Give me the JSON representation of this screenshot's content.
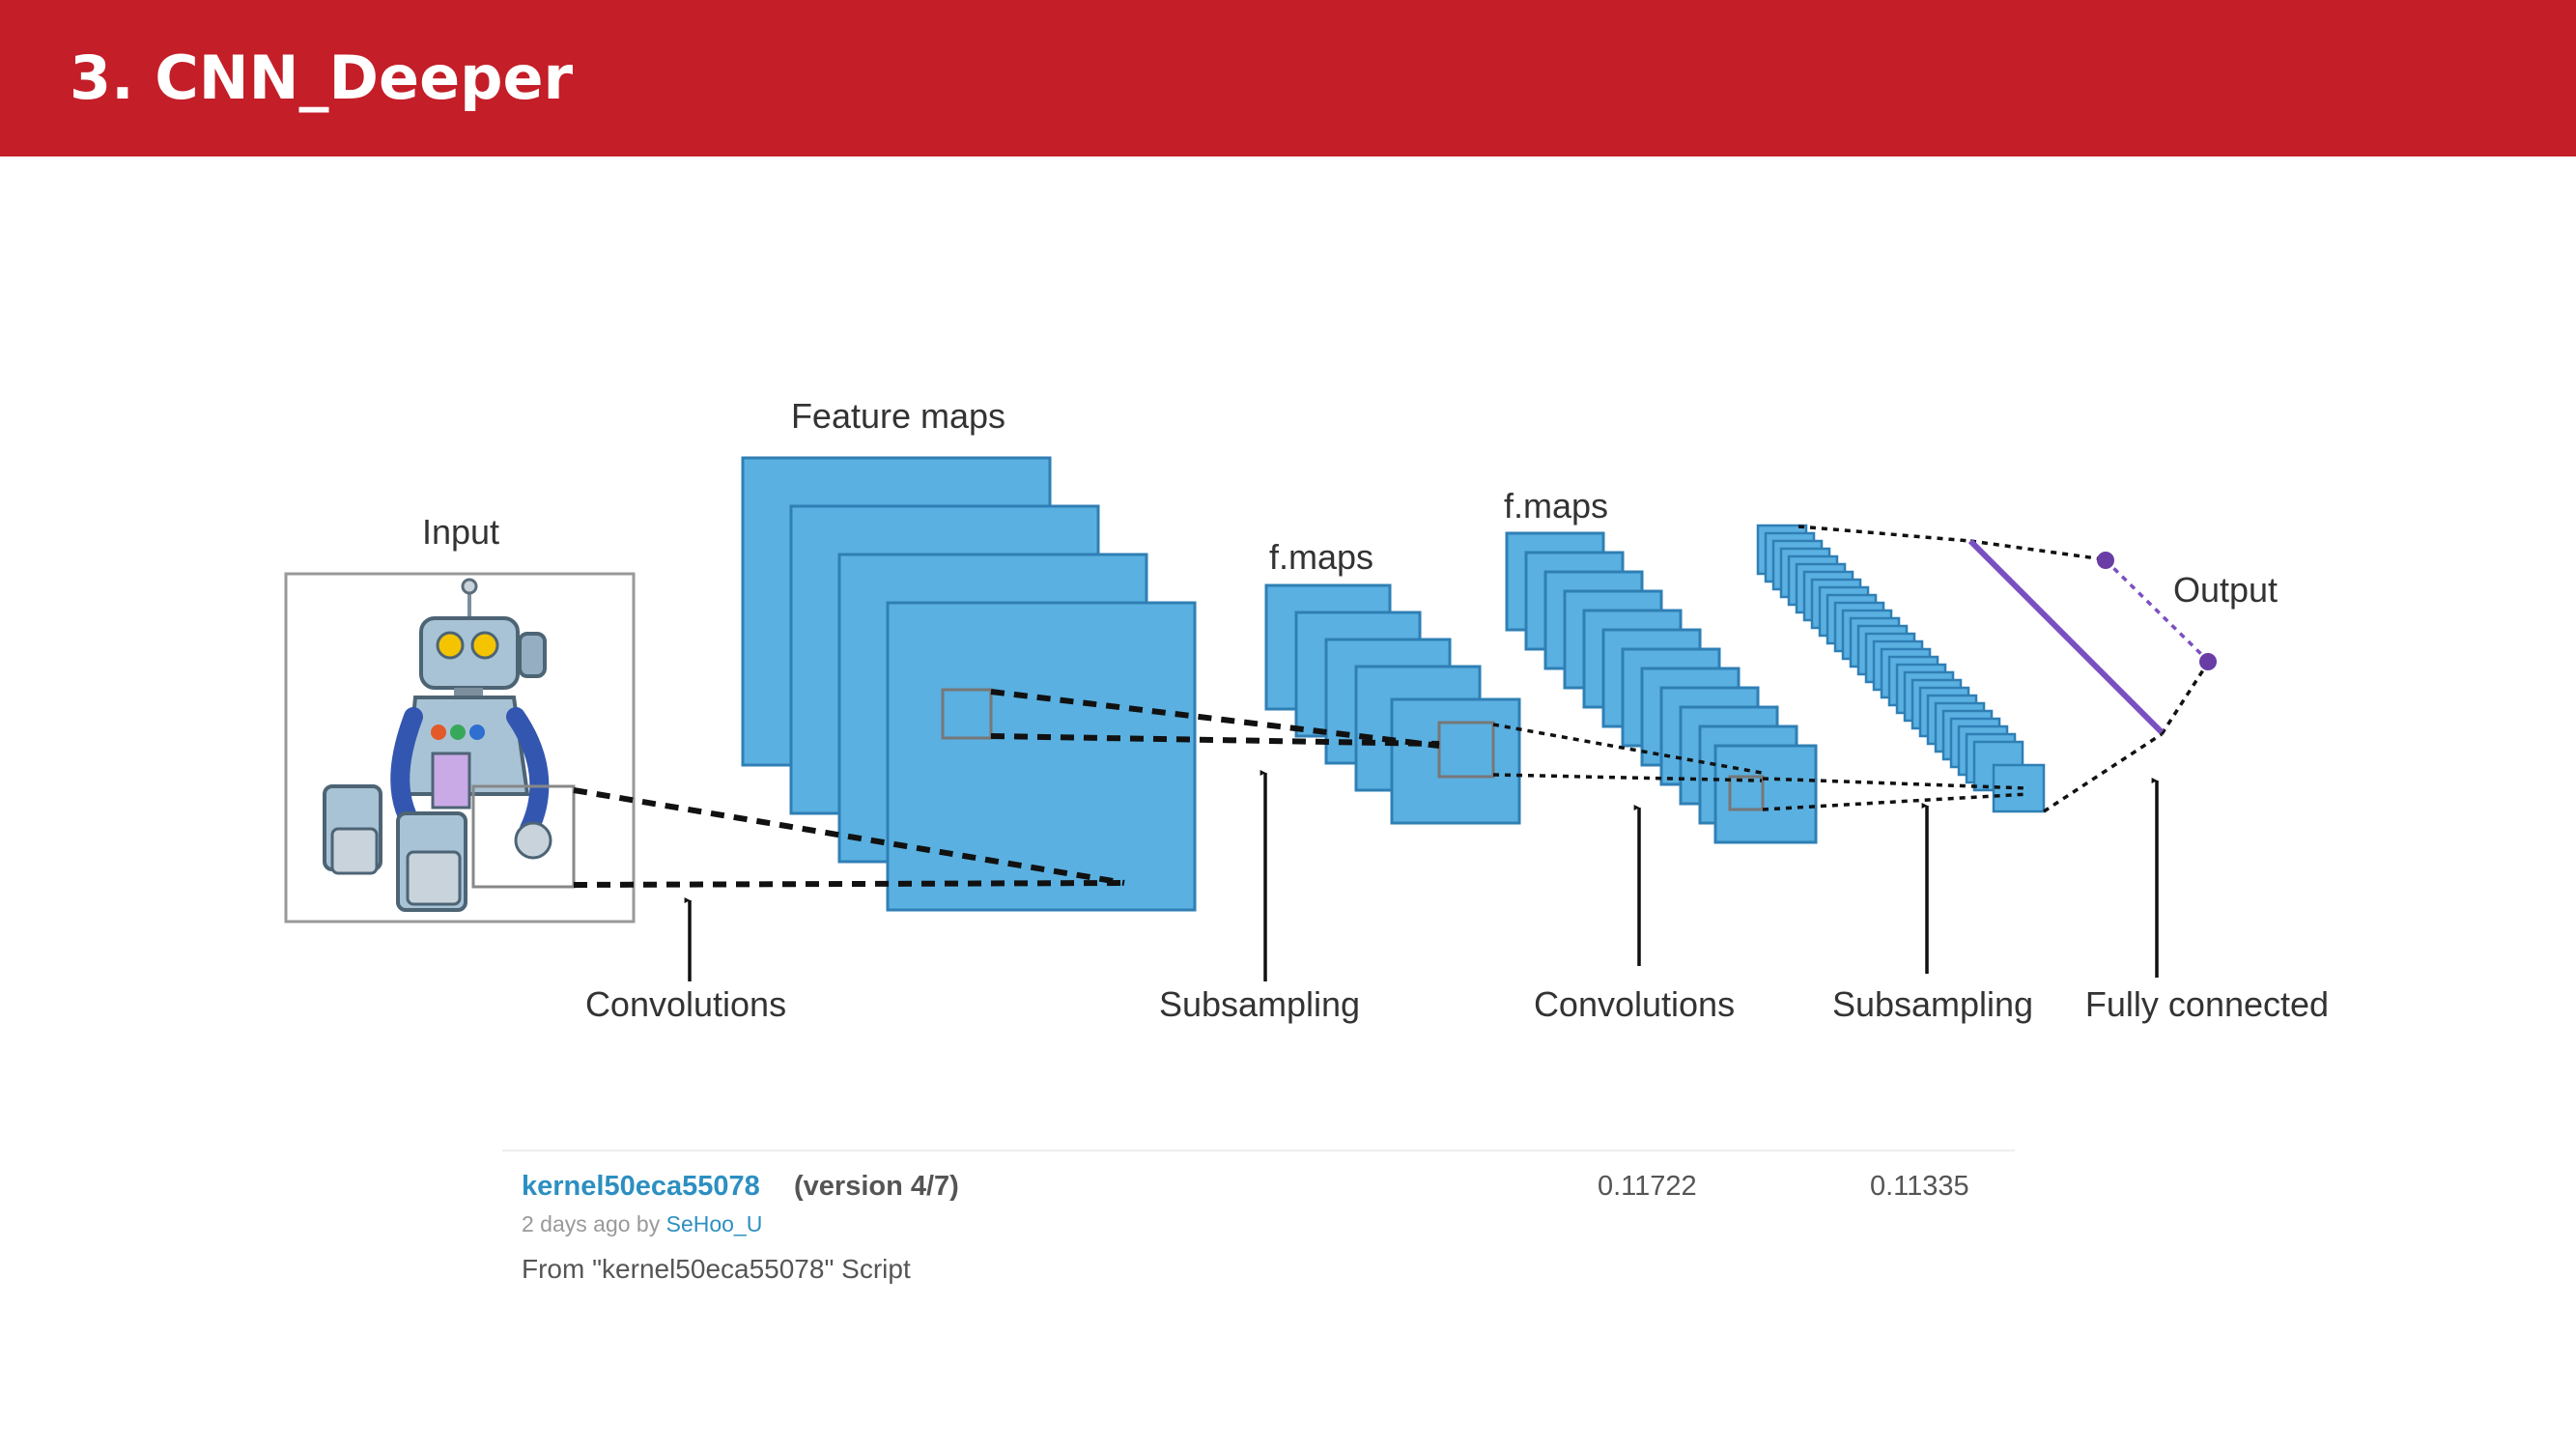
{
  "header": {
    "title": "3. CNN_Deeper",
    "background_color": "#c41e28",
    "text_color": "#ffffff"
  },
  "diagram": {
    "labels": {
      "input": "Input",
      "feature_maps": "Feature maps",
      "fmaps_1": "f.maps",
      "fmaps_2": "f.maps",
      "output": "Output"
    },
    "stages": [
      "Convolutions",
      "Subsampling",
      "Convolutions",
      "Subsampling",
      "Fully connected"
    ],
    "colors": {
      "map_fill": "#5ab0e0",
      "map_stroke": "#2f7fb5",
      "output_line": "#7a4fbf",
      "output_node": "#6a3da6",
      "robot_body": "#a9c3d6",
      "robot_arms": "#3357b0",
      "robot_panel": "#c9a9e6"
    },
    "icons": [
      "robot-icon",
      "arrow-up-icon"
    ]
  },
  "kernel": {
    "name": "kernel50eca55078",
    "version": "(version 4/7)",
    "time": "2 days ago by",
    "author": "SeHoo_U",
    "source": "From \"kernel50eca55078\" Script",
    "score_public": "0.11722",
    "score_private": "0.11335"
  }
}
